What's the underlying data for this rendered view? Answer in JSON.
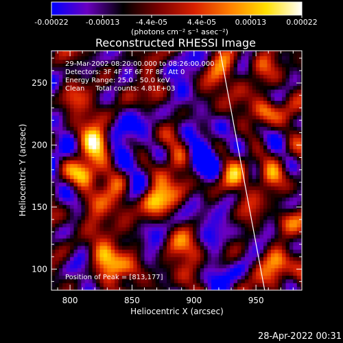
{
  "chart_data": {
    "type": "heatmap",
    "title": "Reconstructed RHESSI Image",
    "xlabel": "Heliocentric X (arcsec)",
    "ylabel": "Heliocentric Y (arcsec)",
    "xlim": [
      785,
      987
    ],
    "ylim": [
      83,
      276
    ],
    "xticks": [
      800,
      850,
      900,
      950
    ],
    "yticks": [
      100,
      150,
      200,
      250
    ],
    "colorbar": {
      "ticks": [
        "-0.00022",
        "-0.00013",
        "-4.4e-05",
        "4.4e-05",
        "0.00013",
        "0.00022"
      ],
      "tick_values": [
        -0.00022,
        -0.00013,
        -4.4e-05,
        4.4e-05,
        0.00013,
        0.00022
      ],
      "range": [
        -0.00022,
        0.00022
      ],
      "units_label": "(photons cm⁻² s⁻¹ asec⁻²)",
      "colormap": [
        "#0000ff",
        "#6a00c0",
        "#000000",
        "#7a0000",
        "#d82000",
        "#ff8000",
        "#ffe000",
        "#ffffff"
      ]
    },
    "annotations": [
      "29-Mar-2002 08:20:00.000 to 08:26:00.000",
      "Detectors: 3F 4F 5F 6F 7F 8F, Att 0",
      "Energy Range: 25.0 - 50.0 keV",
      "Clean     Total counts: 4.81E+03"
    ],
    "peak_label": "Position of Peak = [813,177]",
    "peak": [
      813,
      177
    ],
    "limb_line": [
      [
        921,
        276
      ],
      [
        957,
        83
      ]
    ],
    "hotspots": [
      {
        "x": 812,
        "y": 176,
        "v": 1.0
      },
      {
        "x": 823,
        "y": 204,
        "v": 0.8
      },
      {
        "x": 866,
        "y": 156,
        "v": 0.85
      },
      {
        "x": 842,
        "y": 150,
        "v": 0.55
      },
      {
        "x": 826,
        "y": 112,
        "v": 0.7
      },
      {
        "x": 852,
        "y": 100,
        "v": 0.75
      },
      {
        "x": 902,
        "y": 116,
        "v": 0.55
      },
      {
        "x": 892,
        "y": 168,
        "v": 0.5
      },
      {
        "x": 846,
        "y": 244,
        "v": 0.45
      },
      {
        "x": 957,
        "y": 228,
        "v": 0.95
      },
      {
        "x": 953,
        "y": 265,
        "v": 0.6
      },
      {
        "x": 962,
        "y": 176,
        "v": 0.8
      },
      {
        "x": 972,
        "y": 140,
        "v": 0.75
      },
      {
        "x": 968,
        "y": 108,
        "v": 0.7
      },
      {
        "x": 985,
        "y": 95,
        "v": 0.8
      },
      {
        "x": 918,
        "y": 252,
        "v": 0.45
      },
      {
        "x": 884,
        "y": 205,
        "v": 0.35
      },
      {
        "x": 800,
        "y": 235,
        "v": 0.45
      },
      {
        "x": 796,
        "y": 140,
        "v": 0.5
      },
      {
        "x": 930,
        "y": 170,
        "v": 0.4
      }
    ],
    "coldspots": [
      {
        "x": 872,
        "y": 218,
        "v": 0.8
      },
      {
        "x": 905,
        "y": 190,
        "v": 0.85
      },
      {
        "x": 900,
        "y": 140,
        "v": 0.6
      },
      {
        "x": 930,
        "y": 210,
        "v": 0.7
      },
      {
        "x": 947,
        "y": 125,
        "v": 0.75
      },
      {
        "x": 880,
        "y": 256,
        "v": 0.5
      },
      {
        "x": 845,
        "y": 205,
        "v": 0.55
      },
      {
        "x": 920,
        "y": 95,
        "v": 0.5
      },
      {
        "x": 810,
        "y": 255,
        "v": 0.4
      }
    ]
  },
  "footer": {
    "timestamp": "28-Apr-2022 00:31"
  }
}
